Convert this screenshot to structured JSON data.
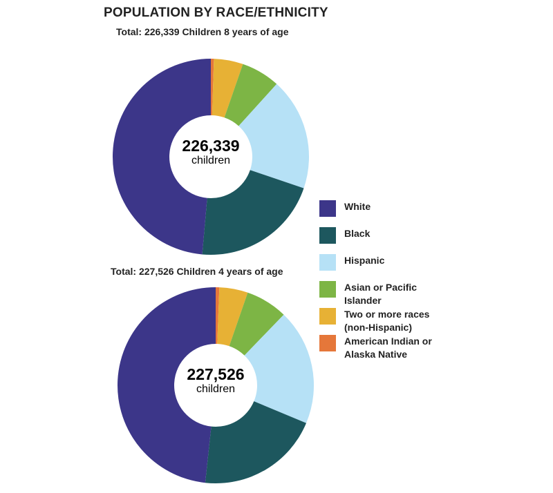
{
  "title": "POPULATION BY RACE/ETHNICITY",
  "chart_data": [
    {
      "type": "pie",
      "subtitle": "Total: 226,339 Children 8 years of age",
      "center_value": "226,339",
      "center_label": "children",
      "categories": [
        "American Indian or Alaska Native",
        "Two or more races (non-Hispanic)",
        "Asian or Pacific Islander",
        "Hispanic",
        "Black",
        "White"
      ],
      "values": [
        0.5,
        4.8,
        6.4,
        18.5,
        21.2,
        48.6
      ],
      "unit": "percent (estimated)"
    },
    {
      "type": "pie",
      "subtitle": "Total: 227,526 Children 4 years of age",
      "center_value": "227,526",
      "center_label": "children",
      "categories": [
        "American Indian or Alaska Native",
        "Two or more races (non-Hispanic)",
        "Asian or Pacific Islander",
        "Hispanic",
        "Black",
        "White"
      ],
      "values": [
        0.6,
        4.7,
        6.9,
        19.1,
        20.4,
        48.3
      ],
      "unit": "percent (estimated)"
    }
  ],
  "colors": {
    "American Indian or Alaska Native": "#e5773a",
    "Two or more races (non-Hispanic)": "#e7b135",
    "Asian or Pacific Islander": "#7db545",
    "Hispanic": "#b6e1f6",
    "Black": "#1d575e",
    "White": "#3c3689"
  },
  "legend": [
    {
      "label": "White",
      "color": "#3c3689"
    },
    {
      "label": "Black",
      "color": "#1d575e"
    },
    {
      "label": "Hispanic",
      "color": "#b6e1f6"
    },
    {
      "label": "Asian or Pacific Islander",
      "color": "#7db545"
    },
    {
      "label": "Two or more races (non-Hispanic)",
      "color": "#e7b135"
    },
    {
      "label": "American Indian or Alaska Native",
      "color": "#e5773a"
    }
  ]
}
